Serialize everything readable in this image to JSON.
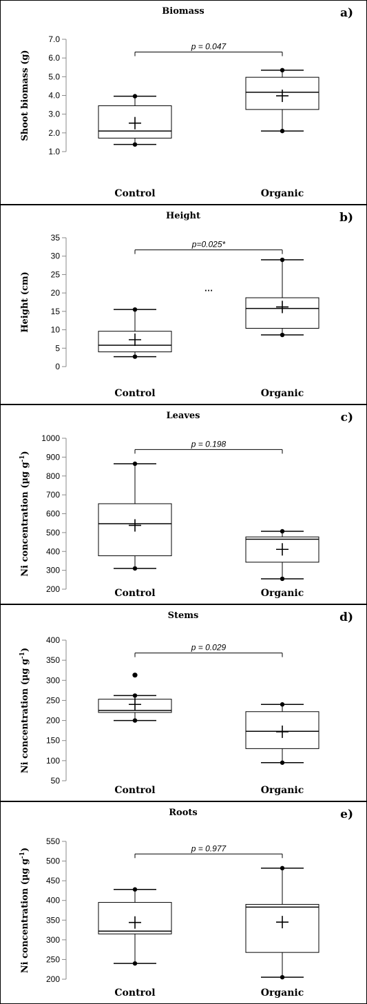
{
  "chart_data": [
    {
      "type": "box",
      "panel_letter": "a)",
      "title": "Biomass",
      "ylabel": "Shoot biomass (g)",
      "ylim": [
        1.0,
        7.0
      ],
      "ytick_values": [
        1.0,
        2.0,
        3.0,
        4.0,
        5.0,
        6.0,
        7.0
      ],
      "ytick_labels": [
        "1.0",
        "2.0",
        "3.0",
        "4.0",
        "5.0",
        "6.0",
        "7.0"
      ],
      "categories": [
        "Control",
        "Organic"
      ],
      "boxes": [
        {
          "min": 1.38,
          "q1": 1.72,
          "median": 2.1,
          "q3": 3.45,
          "max": 3.96,
          "mean": 2.52,
          "outliers": []
        },
        {
          "min": 2.1,
          "q1": 3.25,
          "median": 4.17,
          "q3": 4.97,
          "max": 5.35,
          "mean": 3.98,
          "outliers": []
        }
      ],
      "annotation": {
        "text": "p = 0.047",
        "y": 6.32
      }
    },
    {
      "type": "box",
      "panel_letter": "b)",
      "title": "Height",
      "ylabel": "Height (cm)",
      "ylim": [
        0,
        35
      ],
      "ytick_values": [
        0,
        5,
        10,
        15,
        20,
        25,
        30,
        35
      ],
      "ytick_labels": [
        "0",
        "5",
        "10",
        "15",
        "20",
        "25",
        "30",
        "35"
      ],
      "categories": [
        "Control",
        "Organic"
      ],
      "boxes": [
        {
          "min": 2.7,
          "q1": 4.0,
          "median": 5.8,
          "q3": 9.6,
          "max": 15.5,
          "mean": 7.3,
          "outliers": []
        },
        {
          "min": 8.6,
          "q1": 10.4,
          "median": 15.8,
          "q3": 18.7,
          "max": 29.0,
          "mean": 16.2,
          "outliers": []
        }
      ],
      "annotation": {
        "text": "p=0.025*",
        "y": 31.7
      },
      "extra_text": {
        "text": "…",
        "y": 20.5
      }
    },
    {
      "type": "box",
      "panel_letter": "c)",
      "title": "Leaves",
      "ylabel": "Ni concentration (µg g",
      "ylabel_sup": "-1",
      "ylabel_end": ")",
      "ylim": [
        200,
        1000
      ],
      "ytick_values": [
        200,
        300,
        400,
        500,
        600,
        700,
        800,
        900,
        1000
      ],
      "ytick_labels": [
        "200",
        "300",
        "400",
        "500",
        "600",
        "700",
        "800",
        "900",
        "1000"
      ],
      "categories": [
        "Control",
        "Organic"
      ],
      "boxes": [
        {
          "min": 310,
          "q1": 377,
          "median": 547,
          "q3": 653,
          "max": 865,
          "mean": 538,
          "outliers": []
        },
        {
          "min": 255,
          "q1": 343,
          "median": 465,
          "q3": 477,
          "max": 507,
          "mean": 411,
          "outliers": []
        }
      ],
      "annotation": {
        "text": "p = 0.198",
        "y": 940
      }
    },
    {
      "type": "box",
      "panel_letter": "d)",
      "title": "Stems",
      "ylabel": "Ni concentration (µg g",
      "ylabel_sup": "-1",
      "ylabel_end": ")",
      "ylim": [
        50,
        400
      ],
      "ytick_values": [
        50,
        100,
        150,
        200,
        250,
        300,
        350,
        400
      ],
      "ytick_labels": [
        "50",
        "100",
        "150",
        "200",
        "250",
        "300",
        "350",
        "400"
      ],
      "categories": [
        "Control",
        "Organic"
      ],
      "boxes": [
        {
          "min": 200,
          "q1": 220,
          "median": 225,
          "q3": 253,
          "max": 262,
          "mean": 240,
          "outliers": [
            313
          ]
        },
        {
          "min": 95,
          "q1": 130,
          "median": 173,
          "q3": 222,
          "max": 240,
          "mean": 172,
          "outliers": []
        }
      ],
      "annotation": {
        "text": "p = 0.029",
        "y": 368
      }
    },
    {
      "type": "box",
      "panel_letter": "e)",
      "title": "Roots",
      "ylabel": "Ni concentration (µg g",
      "ylabel_sup": "-1",
      "ylabel_end": ")",
      "ylim": [
        200,
        550
      ],
      "ytick_values": [
        200,
        250,
        300,
        350,
        400,
        450,
        500,
        550
      ],
      "ytick_labels": [
        "200",
        "250",
        "300",
        "350",
        "400",
        "450",
        "500",
        "550"
      ],
      "categories": [
        "Control",
        "Organic"
      ],
      "boxes": [
        {
          "min": 240,
          "q1": 315,
          "median": 322,
          "q3": 395,
          "max": 428,
          "mean": 344,
          "outliers": []
        },
        {
          "min": 205,
          "q1": 268,
          "median": 383,
          "q3": 390,
          "max": 482,
          "mean": 345,
          "outliers": []
        }
      ],
      "annotation": {
        "text": "p = 0.977",
        "y": 518
      }
    }
  ]
}
